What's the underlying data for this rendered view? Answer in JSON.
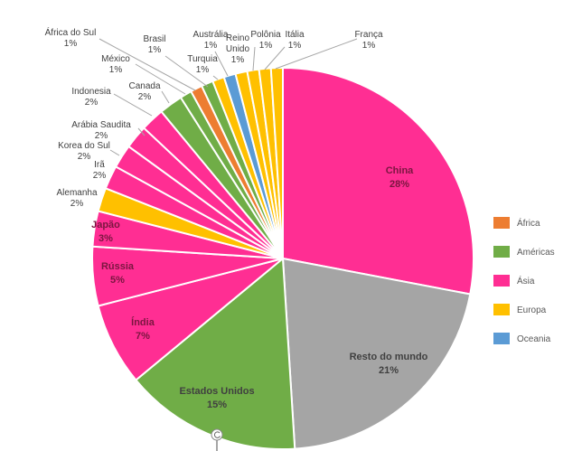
{
  "chart_data": {
    "type": "pie",
    "title": "",
    "legend_position": "right",
    "legend": [
      {
        "name": "África",
        "color": "#ED7D31"
      },
      {
        "name": "Américas",
        "color": "#70AD47"
      },
      {
        "name": "Ásia",
        "color": "#FF2E93"
      },
      {
        "name": "Europa",
        "color": "#FFC000"
      },
      {
        "name": "Oceania",
        "color": "#5B9BD5"
      }
    ],
    "slices": [
      {
        "label": "China",
        "value": 28,
        "pct": "28%",
        "group": "Ásia"
      },
      {
        "label": "Resto do mundo",
        "value": 21,
        "pct": "21%",
        "group": ""
      },
      {
        "label": "Estados Unidos",
        "value": 15,
        "pct": "15%",
        "group": "Américas"
      },
      {
        "label": "Índia",
        "value": 7,
        "pct": "7%",
        "group": "Ásia"
      },
      {
        "label": "Rússia",
        "value": 5,
        "pct": "5%",
        "group": "Ásia"
      },
      {
        "label": "Japão",
        "value": 3,
        "pct": "3%",
        "group": "Ásia"
      },
      {
        "label": "Alemanha",
        "value": 2,
        "pct": "2%",
        "group": "Europa"
      },
      {
        "label": "Irã",
        "value": 2,
        "pct": "2%",
        "group": "Ásia"
      },
      {
        "label": "Korea do Sul",
        "value": 2,
        "pct": "2%",
        "group": "Ásia"
      },
      {
        "label": "Arábia Saudita",
        "value": 2,
        "pct": "2%",
        "group": "Ásia"
      },
      {
        "label": "Indonesia",
        "value": 2,
        "pct": "2%",
        "group": "Ásia"
      },
      {
        "label": "Canada",
        "value": 2,
        "pct": "2%",
        "group": "Américas"
      },
      {
        "label": "México",
        "value": 1,
        "pct": "1%",
        "group": "Américas"
      },
      {
        "label": "África do Sul",
        "value": 1,
        "pct": "1%",
        "group": "África"
      },
      {
        "label": "Brasil",
        "value": 1,
        "pct": "1%",
        "group": "Américas"
      },
      {
        "label": "Turquia",
        "value": 1,
        "pct": "1%",
        "group": "Europa"
      },
      {
        "label": "Austrália",
        "value": 1,
        "pct": "1%",
        "group": "Oceania"
      },
      {
        "label": "Reino Unido",
        "value": 1,
        "pct": "1%",
        "group": "Europa"
      },
      {
        "label": "Polônia",
        "value": 1,
        "pct": "1%",
        "group": "Europa"
      },
      {
        "label": "Itália",
        "value": 1,
        "pct": "1%",
        "group": "Europa"
      },
      {
        "label": "França",
        "value": 1,
        "pct": "1%",
        "group": "Europa"
      }
    ],
    "other_color": "#A5A5A5"
  }
}
